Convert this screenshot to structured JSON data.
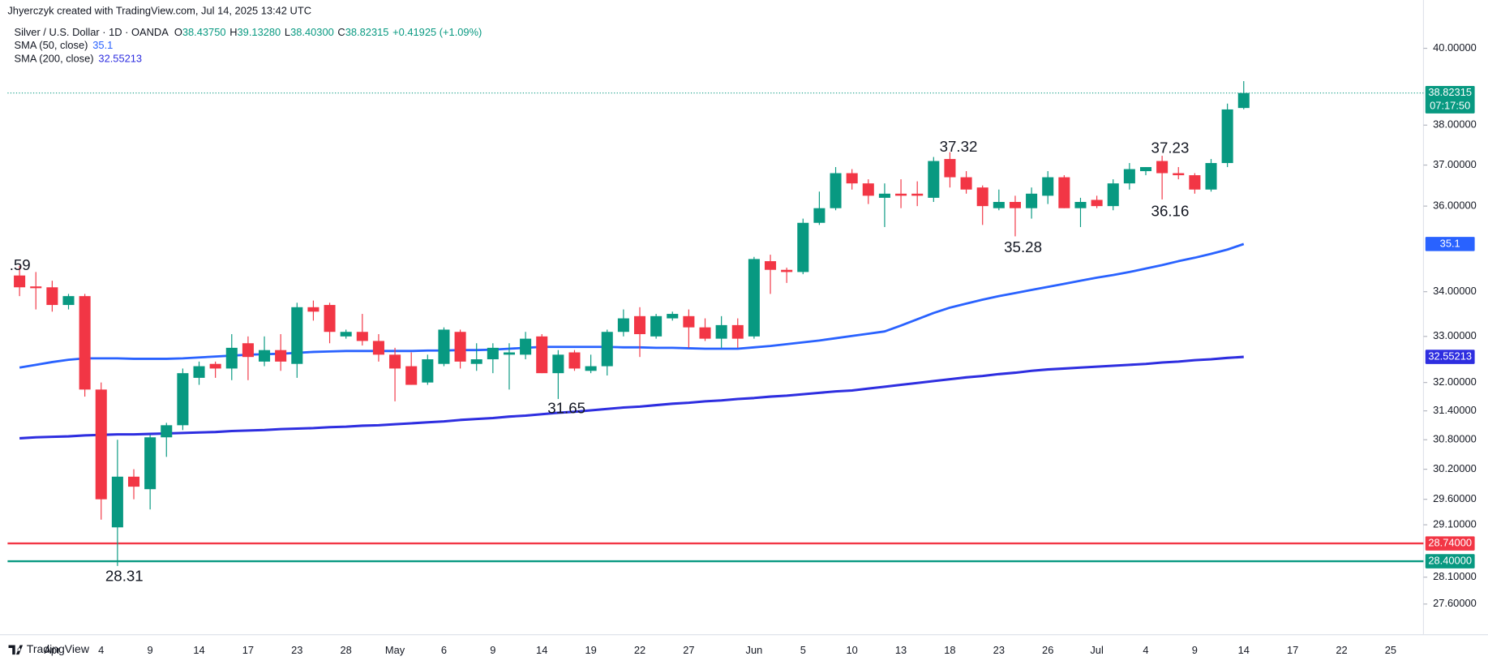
{
  "chart_data": {
    "type": "candlestick",
    "watermark": "Jhyerczyk created with TradingView.com, Jul 14, 2025 13:42 UTC",
    "legend": {
      "symbol": "Silver / U.S. Dollar · 1D · OANDA",
      "ohlc": [
        {
          "key": "O",
          "label": "38.43750"
        },
        {
          "key": "H",
          "label": "39.13280"
        },
        {
          "key": "L",
          "label": "38.40300"
        },
        {
          "key": "C",
          "label": "38.82315"
        }
      ],
      "change": "+0.41925 (+1.09%)"
    },
    "footer": "TradingView",
    "countdown": "07:17:50",
    "up_color": "#089981",
    "down_color": "#f23645",
    "log_scale": true,
    "grid": false,
    "categories": [
      null,
      null,
      "Apr",
      null,
      null,
      "4",
      null,
      null,
      "9",
      null,
      null,
      "14",
      null,
      null,
      "17",
      null,
      null,
      "23",
      null,
      null,
      "28",
      null,
      null,
      "May",
      null,
      null,
      "6",
      null,
      null,
      "9",
      null,
      null,
      "14",
      null,
      null,
      "19",
      null,
      null,
      "22",
      null,
      null,
      "27",
      null,
      null,
      null,
      "Jun",
      null,
      null,
      "5",
      null,
      null,
      "10",
      null,
      null,
      "13",
      null,
      null,
      "18",
      null,
      null,
      "23",
      null,
      null,
      "26",
      null,
      null,
      "Jul",
      null,
      null,
      "4",
      null,
      null,
      "9",
      null,
      null,
      "14",
      null,
      null,
      "17",
      null,
      null,
      "22",
      null,
      null,
      "25",
      null,
      null
    ],
    "open": [
      34.37,
      34.12,
      34.1,
      33.7,
      33.9,
      31.85,
      29.05,
      30.05,
      29.8,
      30.85,
      31.1,
      32.1,
      32.4,
      32.3,
      32.85,
      32.45,
      32.7,
      32.4,
      33.65,
      33.7,
      33.0,
      33.1,
      32.9,
      32.6,
      32.35,
      32.0,
      32.4,
      33.1,
      32.4,
      32.5,
      32.6,
      32.6,
      33.0,
      32.2,
      32.65,
      32.25,
      32.35,
      33.1,
      33.45,
      33.0,
      33.4,
      33.45,
      33.2,
      32.95,
      33.25,
      33.0,
      34.7,
      34.5,
      34.45,
      35.6,
      35.95,
      36.8,
      36.55,
      36.2,
      36.3,
      36.3,
      36.2,
      37.15,
      36.7,
      36.45,
      35.95,
      36.1,
      35.95,
      36.25,
      36.7,
      35.95,
      36.15,
      36.0,
      36.55,
      36.85,
      37.1,
      36.8,
      36.75,
      36.4,
      37.05,
      38.4375,
      null,
      null,
      null,
      null,
      null,
      null,
      null,
      null,
      null,
      null,
      null
    ],
    "high": [
      34.59,
      34.45,
      34.25,
      33.95,
      33.95,
      32.0,
      30.8,
      30.2,
      30.9,
      31.15,
      32.3,
      32.45,
      32.45,
      33.05,
      33.0,
      33.0,
      33.05,
      33.75,
      33.8,
      33.75,
      33.15,
      33.5,
      33.05,
      32.75,
      32.65,
      32.6,
      33.2,
      33.15,
      32.85,
      32.85,
      32.85,
      33.1,
      33.05,
      32.7,
      32.7,
      32.6,
      33.15,
      33.6,
      33.65,
      33.5,
      33.55,
      33.6,
      33.4,
      33.45,
      33.4,
      34.8,
      34.85,
      34.55,
      35.7,
      36.35,
      36.95,
      36.9,
      36.65,
      36.55,
      36.65,
      36.6,
      37.2,
      37.32,
      36.85,
      36.5,
      36.4,
      36.25,
      36.45,
      36.85,
      36.75,
      36.2,
      36.25,
      36.65,
      37.05,
      36.95,
      37.23,
      36.95,
      36.8,
      37.15,
      38.55,
      39.1328,
      null,
      null,
      null,
      null,
      null,
      null,
      null,
      null,
      null,
      null,
      null
    ],
    "low": [
      33.9,
      33.6,
      33.55,
      33.6,
      31.7,
      29.2,
      28.31,
      29.6,
      29.4,
      30.45,
      31.0,
      31.95,
      32.1,
      32.05,
      32.05,
      32.35,
      32.25,
      32.1,
      33.35,
      32.85,
      32.95,
      32.8,
      32.45,
      31.6,
      31.95,
      31.95,
      32.35,
      32.3,
      32.25,
      32.2,
      31.85,
      32.5,
      32.2,
      31.65,
      32.25,
      32.2,
      32.15,
      33.0,
      32.55,
      32.95,
      33.35,
      32.75,
      32.9,
      32.75,
      32.75,
      32.95,
      33.95,
      34.2,
      34.4,
      35.55,
      35.9,
      36.4,
      36.05,
      35.5,
      35.95,
      36.0,
      36.1,
      36.45,
      36.3,
      35.55,
      35.9,
      35.28,
      35.7,
      36.05,
      35.95,
      35.5,
      35.95,
      35.9,
      36.4,
      36.75,
      36.16,
      36.65,
      36.3,
      36.35,
      36.95,
      38.403,
      null,
      null,
      null,
      null,
      null,
      null,
      null,
      null,
      null,
      null,
      null
    ],
    "close": [
      34.1,
      34.08,
      33.7,
      33.9,
      31.85,
      29.6,
      30.05,
      29.85,
      30.85,
      31.1,
      32.2,
      32.35,
      32.3,
      32.75,
      32.55,
      32.7,
      32.45,
      33.65,
      33.55,
      33.1,
      33.1,
      32.9,
      32.6,
      32.3,
      31.95,
      32.5,
      33.15,
      32.45,
      32.5,
      32.75,
      32.65,
      32.95,
      32.2,
      32.6,
      32.3,
      32.35,
      33.1,
      33.4,
      33.05,
      33.45,
      33.5,
      33.2,
      32.95,
      33.25,
      32.95,
      34.75,
      34.5,
      34.45,
      35.6,
      35.95,
      36.8,
      36.55,
      36.25,
      36.3,
      36.25,
      36.25,
      37.1,
      36.7,
      36.4,
      36.0,
      36.1,
      35.95,
      36.3,
      36.7,
      35.95,
      36.1,
      36.0,
      36.55,
      36.9,
      36.95,
      36.8,
      36.75,
      36.4,
      37.05,
      38.4,
      38.82315,
      null,
      null,
      null,
      null,
      null,
      null,
      null,
      null,
      null,
      null,
      null
    ],
    "series": [
      {
        "name": "SMA (50, close)",
        "color": "#2962ff",
        "values": [
          32.32,
          32.38,
          32.44,
          32.49,
          32.52,
          32.52,
          32.52,
          32.51,
          32.51,
          32.51,
          32.52,
          32.54,
          32.56,
          32.58,
          32.6,
          32.61,
          32.62,
          32.64,
          32.66,
          32.67,
          32.68,
          32.68,
          32.68,
          32.68,
          32.68,
          32.69,
          32.69,
          32.7,
          32.7,
          32.71,
          32.73,
          32.75,
          32.77,
          32.77,
          32.77,
          32.77,
          32.77,
          32.76,
          32.76,
          32.75,
          32.75,
          32.74,
          32.73,
          32.73,
          32.73,
          32.76,
          32.79,
          32.83,
          32.87,
          32.91,
          32.96,
          33.01,
          33.06,
          33.11,
          33.24,
          33.38,
          33.52,
          33.64,
          33.73,
          33.82,
          33.9,
          33.97,
          34.04,
          34.11,
          34.18,
          34.25,
          34.32,
          34.38,
          34.45,
          34.53,
          34.61,
          34.7,
          34.78,
          34.87,
          34.97,
          35.1,
          null,
          null,
          null,
          null,
          null,
          null,
          null,
          null,
          null,
          null,
          null
        ]
      },
      {
        "name": "SMA (200, close)",
        "color": "#2e2ee0",
        "values": [
          30.83,
          30.85,
          30.86,
          30.87,
          30.89,
          30.9,
          30.91,
          30.91,
          30.92,
          30.93,
          30.94,
          30.95,
          30.96,
          30.98,
          30.99,
          31.0,
          31.02,
          31.03,
          31.04,
          31.06,
          31.07,
          31.09,
          31.1,
          31.12,
          31.14,
          31.16,
          31.18,
          31.21,
          31.23,
          31.25,
          31.28,
          31.3,
          31.33,
          31.36,
          31.38,
          31.41,
          31.44,
          31.47,
          31.49,
          31.52,
          31.55,
          31.57,
          31.6,
          31.62,
          31.65,
          31.67,
          31.7,
          31.72,
          31.75,
          31.78,
          31.81,
          31.83,
          31.87,
          31.91,
          31.95,
          31.99,
          32.03,
          32.07,
          32.11,
          32.14,
          32.18,
          32.21,
          32.25,
          32.28,
          32.3,
          32.32,
          32.34,
          32.36,
          32.38,
          32.4,
          32.43,
          32.45,
          32.48,
          32.5,
          32.53,
          32.55213,
          null,
          null,
          null,
          null,
          null,
          null,
          null,
          null,
          null,
          null,
          null
        ]
      }
    ],
    "hlines": [
      {
        "value": 28.74,
        "label": "28.74000",
        "color": "#f23645"
      },
      {
        "value": 28.4,
        "label": "28.40000",
        "color": "#089981"
      }
    ],
    "annotations": [
      ".59",
      "28.31",
      "31.65",
      "37.32",
      "35.28",
      "37.23",
      "36.16"
    ],
    "ylim": [
      27.42,
      40.74
    ],
    "yticks": [
      {
        "value": 40,
        "label": "40.00000"
      },
      {
        "value": 38,
        "label": "38.00000"
      },
      {
        "value": 37,
        "label": "37.00000"
      },
      {
        "value": 36,
        "label": "36.00000"
      },
      {
        "value": 34,
        "label": "34.00000"
      },
      {
        "value": 33,
        "label": "33.00000"
      },
      {
        "value": 32,
        "label": "32.00000"
      },
      {
        "value": 31.4,
        "label": "31.40000"
      },
      {
        "value": 30.8,
        "label": "30.80000"
      },
      {
        "value": 30.2,
        "label": "30.20000"
      },
      {
        "value": 29.6,
        "label": "29.60000"
      },
      {
        "value": 29.1,
        "label": "29.10000"
      },
      {
        "value": 28.1,
        "label": "28.10000"
      },
      {
        "value": 27.6,
        "label": "27.60000"
      }
    ]
  }
}
